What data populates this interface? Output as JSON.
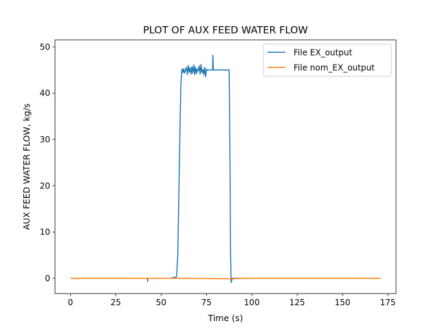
{
  "chart_data": {
    "type": "line",
    "title": "PLOT OF AUX FEED WATER FLOW",
    "xlabel": "Time (s)",
    "ylabel": "AUX FEED WATER FLOW, kg/s",
    "xlim": [
      -8.5,
      179.5
    ],
    "ylim": [
      -3.3,
      51.5
    ],
    "xticks": [
      0,
      25,
      50,
      75,
      100,
      125,
      150,
      175
    ],
    "yticks": [
      0,
      10,
      20,
      30,
      40,
      50
    ],
    "grid": false,
    "legend_position": "top-right",
    "series": [
      {
        "name": "File EX_output",
        "color": "#1f77b4",
        "x": [
          0,
          40,
          42.5,
          42.6,
          42.7,
          43,
          55,
          58.5,
          59.2,
          59.8,
          60.3,
          60.9,
          61.5,
          62.0,
          62.5,
          63,
          63.5,
          64,
          64.5,
          65,
          65.5,
          66,
          66.5,
          67,
          67.5,
          68,
          68.5,
          69,
          69.5,
          70,
          70.5,
          71,
          71.5,
          72,
          72.5,
          73,
          73.5,
          74,
          74.5,
          75,
          75.5,
          76,
          77,
          78,
          78.4,
          78.5,
          78.8,
          79,
          80,
          83,
          86,
          87.5,
          87.9,
          88.3,
          88.6,
          88.9,
          89.3,
          90,
          100,
          125,
          150,
          171
        ],
        "y": [
          0,
          0,
          0,
          -0.7,
          0,
          0,
          0,
          0.3,
          5,
          18,
          30,
          42,
          45.2,
          44.4,
          45.3,
          44.3,
          45.1,
          45.6,
          44,
          46,
          44.5,
          45.5,
          44.1,
          45.7,
          44.3,
          46.1,
          44.0,
          45.6,
          44.2,
          45.2,
          44.8,
          45.9,
          44.1,
          46.2,
          44.4,
          45.1,
          44.0,
          45.6,
          43.5,
          45.2,
          44.9,
          45.0,
          45,
          45,
          45,
          48.2,
          45.1,
          45,
          45,
          45,
          45,
          45,
          30,
          5,
          -0.9,
          -0.5,
          0,
          0,
          0,
          0,
          0,
          0
        ]
      },
      {
        "name": "File nom_EX_output",
        "color": "#ff7f0e",
        "x": [
          0,
          60,
          88,
          95,
          171
        ],
        "y": [
          0,
          0,
          -0.1,
          0,
          0
        ]
      }
    ]
  }
}
